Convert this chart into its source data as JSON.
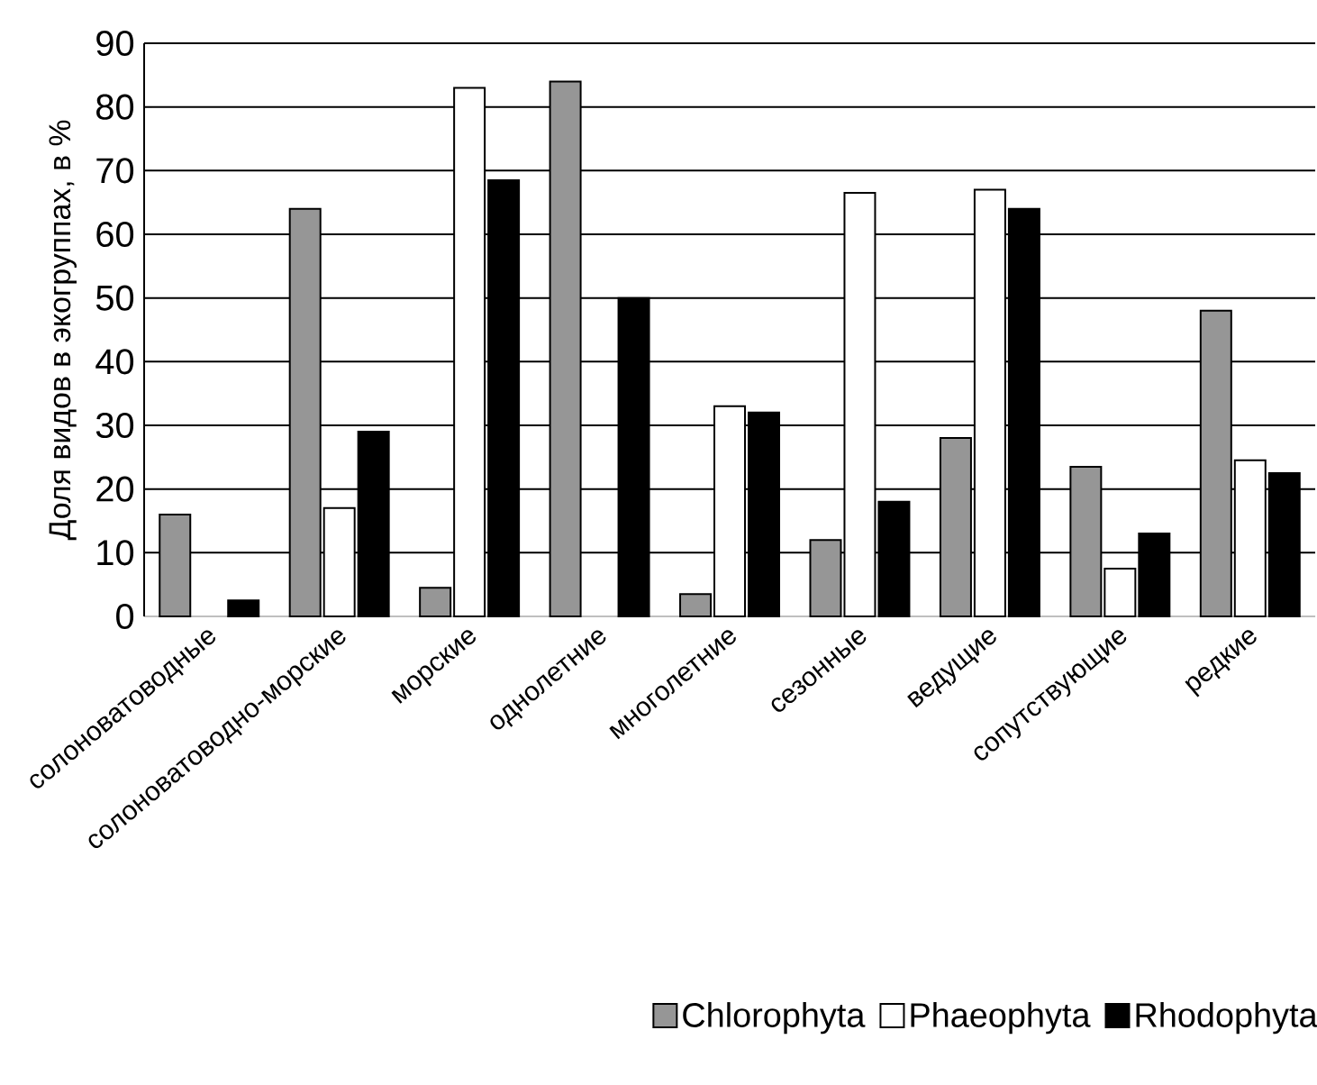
{
  "chart_data": {
    "type": "bar",
    "ylabel": "Доля видов в экогруппах, в %",
    "categories": [
      "солоноватоводные",
      "солоноватоводно-морские",
      "морские",
      "однолетние",
      "многолетние",
      "сезонные",
      "ведущие",
      "сопутствующие",
      "редкие"
    ],
    "series": [
      {
        "name": "Chlorophyta",
        "color": "#969696",
        "values": [
          16,
          64,
          4.5,
          84,
          3.5,
          12,
          28,
          23.5,
          48
        ]
      },
      {
        "name": "Phaeophyta",
        "color": "#ffffff",
        "values": [
          null,
          17,
          83,
          null,
          33,
          66.5,
          67,
          7.5,
          24.5
        ]
      },
      {
        "name": "Rhodophyta",
        "color": "#000000",
        "values": [
          2.5,
          29,
          68.5,
          50,
          32,
          18,
          64,
          13,
          22.5
        ]
      }
    ],
    "ylim": [
      0,
      90
    ],
    "yticks": [
      0,
      10,
      20,
      30,
      40,
      50,
      60,
      70,
      80,
      90
    ],
    "grid": "y",
    "legend": "bottom"
  }
}
